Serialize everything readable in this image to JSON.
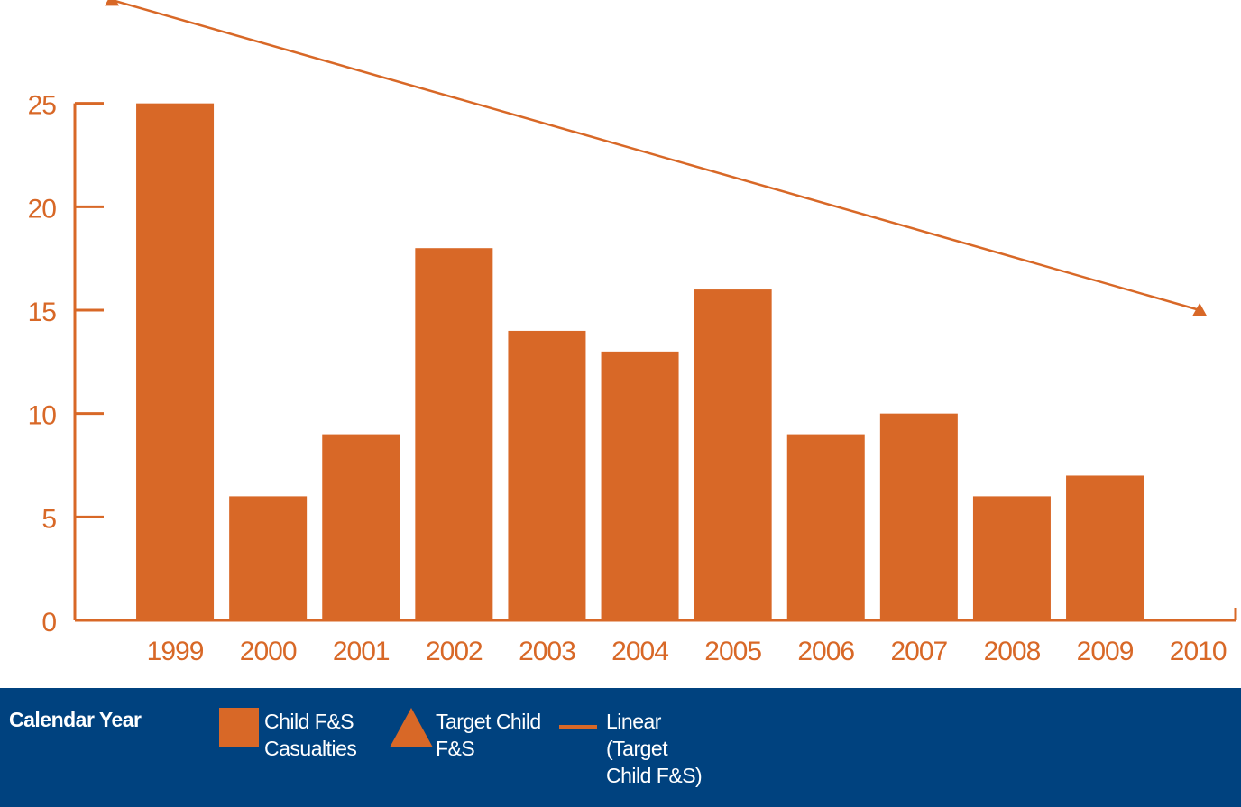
{
  "chart_data": {
    "type": "bar",
    "x_label": "Calendar Year",
    "categories": [
      "1999",
      "2000",
      "2001",
      "2002",
      "2003",
      "2004",
      "2005",
      "2006",
      "2007",
      "2008",
      "2009",
      "2010"
    ],
    "series": [
      {
        "name": "Child F&S Casualties",
        "type": "bar",
        "color": "#d86827",
        "values": [
          25,
          6,
          9,
          18,
          14,
          13,
          16,
          9,
          10,
          6,
          7,
          null
        ]
      },
      {
        "name": "Target Child F&S",
        "type": "scatter",
        "marker": "triangle",
        "color": "#d86827",
        "values": [
          30,
          null,
          null,
          null,
          null,
          null,
          null,
          null,
          null,
          null,
          null,
          15
        ]
      }
    ],
    "trendline": {
      "name": "Linear (Target Child F&S)",
      "type": "linear",
      "of_series": 1,
      "color": "#d86827"
    },
    "ylim": [
      0,
      30
    ],
    "yticks": [
      0,
      5,
      10,
      15,
      20,
      25
    ],
    "grid": false
  }
}
